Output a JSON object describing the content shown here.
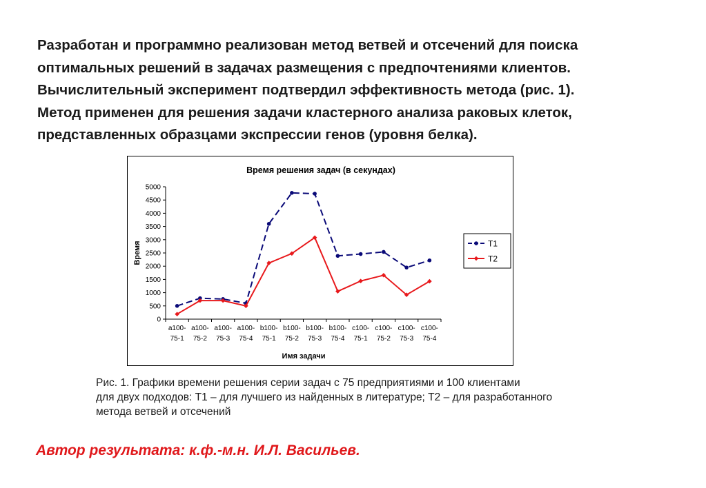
{
  "intro": {
    "lines": [
      "Разработан и программно реализован метод ветвей и отсечений для поиска",
      "оптимальных решений в задачах размещения с предпочтениями клиентов.",
      "Вычислительный эксперимент подтвердил эффективность метода (рис. 1).",
      "Метод применен для решения задачи кластерного анализа раковых клеток,",
      "представленных образцами экспрессии генов (уровня белка)."
    ]
  },
  "caption": {
    "lines": [
      "Рис. 1. Графики времени решения серии задач с 75 предприятиями и 100 клиентами",
      "для двух подходов: T1 – для лучшего из найденных в литературе; T2 – для разработанного",
      "метода ветвей и отсечений"
    ]
  },
  "author": "Автор результата: к.ф.-м.н. И.Л. Васильев.",
  "chart_data": {
    "type": "line",
    "title": "Время решения задач (в секундах)",
    "xlabel": "Имя задачи",
    "ylabel": "Время",
    "ylim": [
      0,
      5000
    ],
    "yticks": [
      0,
      500,
      1000,
      1500,
      2000,
      2500,
      3000,
      3500,
      4000,
      4500,
      5000
    ],
    "categories": [
      [
        "a100-",
        "75-1"
      ],
      [
        "a100-",
        "75-2"
      ],
      [
        "a100-",
        "75-3"
      ],
      [
        "a100-",
        "75-4"
      ],
      [
        "b100-",
        "75-1"
      ],
      [
        "b100-",
        "75-2"
      ],
      [
        "b100-",
        "75-3"
      ],
      [
        "b100-",
        "75-4"
      ],
      [
        "c100-",
        "75-1"
      ],
      [
        "c100-",
        "75-2"
      ],
      [
        "c100-",
        "75-3"
      ],
      [
        "c100-",
        "75-4"
      ]
    ],
    "grid": false,
    "legend_position": "right",
    "series": [
      {
        "name": "T1",
        "color": "#0a0a78",
        "line_style": "dashed",
        "marker": "circle",
        "values": [
          500,
          790,
          760,
          600,
          3600,
          4770,
          4740,
          2390,
          2460,
          2540,
          1950,
          2220
        ]
      },
      {
        "name": "T2",
        "color": "#e8191c",
        "line_style": "solid",
        "marker": "diamond",
        "values": [
          190,
          700,
          700,
          500,
          2120,
          2480,
          3080,
          1050,
          1440,
          1660,
          920,
          1430
        ]
      }
    ]
  }
}
